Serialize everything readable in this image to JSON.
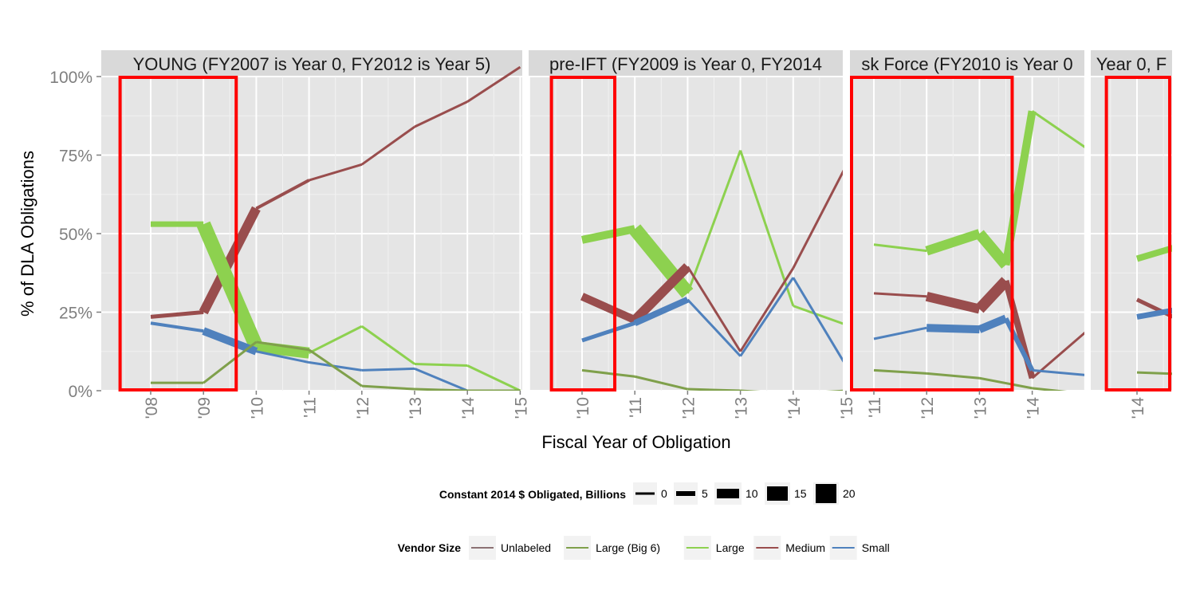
{
  "chart_data": {
    "type": "line",
    "ylabel": "% of  DLA  Obligations",
    "xlabel": "Fiscal Year of Obligation",
    "ylim": [
      0,
      1
    ],
    "y_ticks": [
      {
        "v": 0,
        "label": "0%"
      },
      {
        "v": 0.25,
        "label": "25%"
      },
      {
        "v": 0.5,
        "label": "50%"
      },
      {
        "v": 0.75,
        "label": "75%"
      },
      {
        "v": 1,
        "label": "100%"
      }
    ],
    "grid": true,
    "panels": [
      {
        "strip": "YOUNG (FY2007 is Year 0, FY2012 is Year 5)",
        "x_ticks": [
          "'08",
          "'09",
          "'10",
          "'11",
          "'12",
          "'13",
          "'14",
          "'15"
        ],
        "highlight_ticks": [
          0,
          1
        ],
        "series": [
          {
            "name": "Medium",
            "points": [
              {
                "x": "'08",
                "y": 0.235,
                "w": 5
              },
              {
                "x": "'09",
                "y": 0.25,
                "w": 12
              },
              {
                "x": "'10",
                "y": 0.58,
                "w": 4
              },
              {
                "x": "'11",
                "y": 0.67,
                "w": 1
              },
              {
                "x": "'12",
                "y": 0.72,
                "w": 1
              },
              {
                "x": "'13",
                "y": 0.84,
                "w": 1
              },
              {
                "x": "'14",
                "y": 0.92,
                "w": 1
              },
              {
                "x": "'15",
                "y": 1.03,
                "w": 1
              }
            ]
          },
          {
            "name": "Large",
            "points": [
              {
                "x": "'08",
                "y": 0.53,
                "w": 7
              },
              {
                "x": "'09",
                "y": 0.53,
                "w": 18
              },
              {
                "x": "'10",
                "y": 0.14,
                "w": 14
              },
              {
                "x": "'11",
                "y": 0.12,
                "w": 1
              },
              {
                "x": "'12",
                "y": 0.205,
                "w": 1
              },
              {
                "x": "'13",
                "y": 0.085,
                "w": 1
              },
              {
                "x": "'14",
                "y": 0.08,
                "w": 1
              },
              {
                "x": "'15",
                "y": 0,
                "w": 1
              }
            ]
          },
          {
            "name": "Small",
            "points": [
              {
                "x": "'08",
                "y": 0.215,
                "w": 4
              },
              {
                "x": "'09",
                "y": 0.19,
                "w": 10
              },
              {
                "x": "'10",
                "y": 0.125,
                "w": 3
              },
              {
                "x": "'11",
                "y": 0.09,
                "w": 1
              },
              {
                "x": "'12",
                "y": 0.065,
                "w": 1
              },
              {
                "x": "'13",
                "y": 0.07,
                "w": 1
              },
              {
                "x": "'14",
                "y": 0,
                "w": 1
              }
            ]
          },
          {
            "name": "Large (Big 6)",
            "points": [
              {
                "x": "'08",
                "y": 0.025,
                "w": 3
              },
              {
                "x": "'09",
                "y": 0.025,
                "w": 3
              },
              {
                "x": "'10",
                "y": 0.155,
                "w": 3
              },
              {
                "x": "'11",
                "y": 0.13,
                "w": 1
              },
              {
                "x": "'12",
                "y": 0.015,
                "w": 1
              },
              {
                "x": "'13",
                "y": 0.005,
                "w": 1
              },
              {
                "x": "'14",
                "y": 0,
                "w": 1
              },
              {
                "x": "'15",
                "y": 0,
                "w": 1
              }
            ]
          }
        ]
      },
      {
        "strip": "pre-IFT (FY2009 is Year 0, FY2014",
        "x_ticks": [
          "'10",
          "'11",
          "'12",
          "'13",
          "'14",
          "'15"
        ],
        "highlight_ticks": [
          0
        ],
        "series": [
          {
            "name": "Large",
            "points": [
              {
                "x": "'10",
                "y": 0.48,
                "w": 10
              },
              {
                "x": "'11",
                "y": 0.515,
                "w": 18
              },
              {
                "x": "'12",
                "y": 0.31,
                "w": 3
              },
              {
                "x": "'13",
                "y": 0.765,
                "w": 1
              },
              {
                "x": "'14",
                "y": 0.27,
                "w": 1
              },
              {
                "x": "'15",
                "y": 0.21,
                "w": 1
              }
            ]
          },
          {
            "name": "Medium",
            "points": [
              {
                "x": "'10",
                "y": 0.3,
                "w": 10
              },
              {
                "x": "'11",
                "y": 0.225,
                "w": 12
              },
              {
                "x": "'12",
                "y": 0.395,
                "w": 2
              },
              {
                "x": "'13",
                "y": 0.125,
                "w": 1
              },
              {
                "x": "'14",
                "y": 0.39,
                "w": 1
              },
              {
                "x": "'15",
                "y": 0.715,
                "w": 1
              }
            ]
          },
          {
            "name": "Small",
            "points": [
              {
                "x": "'10",
                "y": 0.16,
                "w": 5
              },
              {
                "x": "'11",
                "y": 0.215,
                "w": 8
              },
              {
                "x": "'12",
                "y": 0.29,
                "w": 2
              },
              {
                "x": "'13",
                "y": 0.11,
                "w": 1
              },
              {
                "x": "'14",
                "y": 0.36,
                "w": 1
              },
              {
                "x": "'15",
                "y": 0.08,
                "w": 1
              }
            ]
          },
          {
            "name": "Large (Big 6)",
            "points": [
              {
                "x": "'10",
                "y": 0.065,
                "w": 3
              },
              {
                "x": "'11",
                "y": 0.045,
                "w": 3
              },
              {
                "x": "'12",
                "y": 0.005,
                "w": 1
              },
              {
                "x": "'13",
                "y": 0,
                "w": 1
              },
              {
                "x": "'14",
                "y": -0.01,
                "w": 1
              },
              {
                "x": "'15",
                "y": 0,
                "w": 1
              }
            ]
          }
        ]
      },
      {
        "strip": "sk Force (FY2010 is Year 0",
        "x_ticks": [
          "'11",
          "'12",
          "'13",
          "'14"
        ],
        "highlight_ticks": [
          0,
          1,
          2
        ],
        "series": [
          {
            "name": "Large",
            "points": [
              {
                "x": "'11",
                "y": 0.465,
                "w": 3
              },
              {
                "x": "'12",
                "y": 0.445,
                "w": 12
              },
              {
                "x": "'13",
                "y": 0.5,
                "w": 14
              },
              {
                "x": "'13.5",
                "y": 0.4,
                "w": 10
              },
              {
                "x": "'14",
                "y": 0.89,
                "w": 3
              },
              {
                "x": "'15",
                "y": 0.775,
                "w": 1
              }
            ]
          },
          {
            "name": "Medium",
            "points": [
              {
                "x": "'11",
                "y": 0.31,
                "w": 3
              },
              {
                "x": "'12",
                "y": 0.3,
                "w": 12
              },
              {
                "x": "'13",
                "y": 0.26,
                "w": 14
              },
              {
                "x": "'13.5",
                "y": 0.35,
                "w": 8
              },
              {
                "x": "'14",
                "y": 0.04,
                "w": 3
              },
              {
                "x": "'15",
                "y": 0.185,
                "w": 1
              }
            ]
          },
          {
            "name": "Small",
            "points": [
              {
                "x": "'11",
                "y": 0.165,
                "w": 3
              },
              {
                "x": "'12",
                "y": 0.2,
                "w": 10
              },
              {
                "x": "'13",
                "y": 0.195,
                "w": 10
              },
              {
                "x": "'13.5",
                "y": 0.23,
                "w": 6
              },
              {
                "x": "'14",
                "y": 0.065,
                "w": 3
              },
              {
                "x": "'15",
                "y": 0.05,
                "w": 1
              }
            ]
          },
          {
            "name": "Large (Big 6)",
            "points": [
              {
                "x": "'11",
                "y": 0.065,
                "w": 3
              },
              {
                "x": "'12",
                "y": 0.055,
                "w": 3
              },
              {
                "x": "'13",
                "y": 0.04,
                "w": 3
              },
              {
                "x": "'14",
                "y": 0.008,
                "w": 2
              },
              {
                "x": "'15",
                "y": -0.01,
                "w": 1
              }
            ]
          }
        ]
      },
      {
        "strip": "Year 0, F",
        "x_ticks": [
          "'14"
        ],
        "highlight_ticks": [
          0
        ],
        "series": [
          {
            "name": "Large",
            "points": [
              {
                "x": "'14",
                "y": 0.42,
                "w": 8
              },
              {
                "x": "'15",
                "y": 0.47,
                "w": 12
              }
            ]
          },
          {
            "name": "Medium",
            "points": [
              {
                "x": "'14",
                "y": 0.29,
                "w": 5
              },
              {
                "x": "'15",
                "y": 0.21,
                "w": 7
              }
            ]
          },
          {
            "name": "Small",
            "points": [
              {
                "x": "'14",
                "y": 0.235,
                "w": 7
              },
              {
                "x": "'15",
                "y": 0.265,
                "w": 9
              }
            ]
          },
          {
            "name": "Large (Big 6)",
            "points": [
              {
                "x": "'14",
                "y": 0.058,
                "w": 3
              },
              {
                "x": "'15",
                "y": 0.052,
                "w": 3
              }
            ]
          }
        ]
      }
    ],
    "size_legend": {
      "title": "Constant 2014 $ Obligated, Billions",
      "items": [
        {
          "label": "0",
          "w": 3
        },
        {
          "label": "5",
          "w": 6
        },
        {
          "label": "10",
          "w": 12
        },
        {
          "label": "15",
          "w": 18
        },
        {
          "label": "20",
          "w": 24
        }
      ]
    },
    "color_legend": {
      "title": "Vendor Size",
      "items": [
        {
          "label": "Unlabeled",
          "color": "#8C7274"
        },
        {
          "label": "Large (Big 6)",
          "color": "#7FA04B"
        },
        {
          "label": "Large",
          "color": "#8DD14F"
        },
        {
          "label": "Medium",
          "color": "#994D4D"
        },
        {
          "label": "Small",
          "color": "#4F81BD"
        }
      ]
    }
  }
}
